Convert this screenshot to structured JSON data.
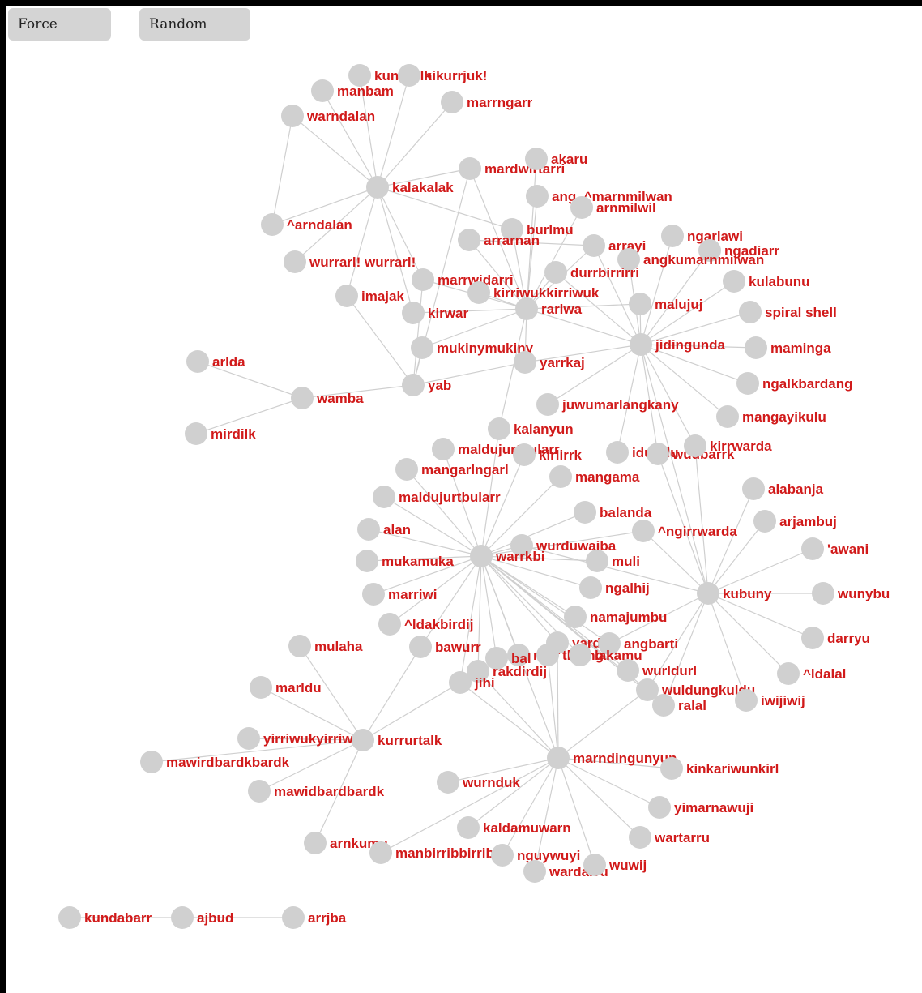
{
  "controls": {
    "force_label": "Force",
    "random_label": "Random"
  },
  "style": {
    "node_color": "#d0d0d0",
    "edge_color": "#cfcfcf",
    "label_color": "#d11a1a",
    "frame_color": "#000000"
  },
  "graph": {
    "nodes": [
      {
        "id": "kalakalak",
        "label": "kalakalak"
      },
      {
        "id": "kungarlk",
        "label": "kungarlk"
      },
      {
        "id": "hikurrjuk",
        "label": "hikurrjuk!"
      },
      {
        "id": "manbam",
        "label": "manbam"
      },
      {
        "id": "marrngarr",
        "label": "marrngarr"
      },
      {
        "id": "warndalan",
        "label": "warndalan"
      },
      {
        "id": "arndalan",
        "label": "^arndalan"
      },
      {
        "id": "wurrarl",
        "label": "wurrarl! wurrarl!"
      },
      {
        "id": "imajak",
        "label": "imajak"
      },
      {
        "id": "mardwirtarri",
        "label": "mardwirtarri"
      },
      {
        "id": "akaru",
        "label": "akaru"
      },
      {
        "id": "angmarnmilwan",
        "label": "ang..^marnmilwan"
      },
      {
        "id": "arnmilwil",
        "label": "arnmilwil"
      },
      {
        "id": "burlmu",
        "label": "burlmu"
      },
      {
        "id": "arrarnan",
        "label": "arrarnan"
      },
      {
        "id": "arrayi",
        "label": "arrayi"
      },
      {
        "id": "ngarlawi",
        "label": "ngarlawi"
      },
      {
        "id": "ngadiarr",
        "label": "ngadiarr"
      },
      {
        "id": "angkumarnmilwan",
        "label": "angkumarnmilwan"
      },
      {
        "id": "durrbirrirri",
        "label": "durrbirrirri"
      },
      {
        "id": "marrwidarri",
        "label": "marrwidarri"
      },
      {
        "id": "kirriwuk",
        "label": "kirriwukkirriwuk"
      },
      {
        "id": "kulabunu",
        "label": "kulabunu"
      },
      {
        "id": "kirwar",
        "label": "kirwar"
      },
      {
        "id": "rarlwa",
        "label": "rarlwa"
      },
      {
        "id": "malujuj",
        "label": "malujuj"
      },
      {
        "id": "spiralshell",
        "label": "spiral shell"
      },
      {
        "id": "jidingunda",
        "label": "jidingunda"
      },
      {
        "id": "maminga",
        "label": "maminga"
      },
      {
        "id": "mukinymukiny",
        "label": "mukinymukiny"
      },
      {
        "id": "yarrkaj",
        "label": "yarrkaj"
      },
      {
        "id": "arlda",
        "label": "arlda"
      },
      {
        "id": "ngalkbardang",
        "label": "ngalkbardang"
      },
      {
        "id": "yab",
        "label": "yab"
      },
      {
        "id": "wamba",
        "label": "wamba"
      },
      {
        "id": "juwumarlangkany",
        "label": "juwumarlangkany"
      },
      {
        "id": "mangayikulu",
        "label": "mangayikulu"
      },
      {
        "id": "mirdilk",
        "label": "mirdilk"
      },
      {
        "id": "kalanyun",
        "label": "kalanyun"
      },
      {
        "id": "maldujurtbularr1",
        "label": "maldujurtbularr"
      },
      {
        "id": "kirlirrk",
        "label": "kirlirrk"
      },
      {
        "id": "idurldu",
        "label": "idurldu"
      },
      {
        "id": "wudbarrk",
        "label": "wudbarrk"
      },
      {
        "id": "kirrwarda",
        "label": "kirrwarda"
      },
      {
        "id": "mangarlngarl",
        "label": "mangarlngarl"
      },
      {
        "id": "mangama",
        "label": "mangama"
      },
      {
        "id": "alabanja",
        "label": "alabanja"
      },
      {
        "id": "maldujurtbularr2",
        "label": "maldujurtbularr"
      },
      {
        "id": "balanda",
        "label": "balanda"
      },
      {
        "id": "arjambuj",
        "label": "arjambuj"
      },
      {
        "id": "alan",
        "label": "alan"
      },
      {
        "id": "ngirrwarda",
        "label": "^ngirrwarda"
      },
      {
        "id": "awani",
        "label": "'awani"
      },
      {
        "id": "wurduwajba",
        "label": "wurduwajba"
      },
      {
        "id": "mukamuka",
        "label": "mukamuka"
      },
      {
        "id": "warrkbi",
        "label": "warrkbi"
      },
      {
        "id": "muli",
        "label": "muli"
      },
      {
        "id": "ngalhij",
        "label": "ngalhij"
      },
      {
        "id": "kubuny",
        "label": "kubuny"
      },
      {
        "id": "wunybu",
        "label": "wunybu"
      },
      {
        "id": "marriwi",
        "label": "marriwi"
      },
      {
        "id": "namajumbu",
        "label": "namajumbu"
      },
      {
        "id": "ldakbirdij",
        "label": "^ldakbirdij"
      },
      {
        "id": "darryu",
        "label": "darryu"
      },
      {
        "id": "yarda",
        "label": "yarda"
      },
      {
        "id": "angbarti",
        "label": "angbarti"
      },
      {
        "id": "mulaha",
        "label": "mulaha"
      },
      {
        "id": "bawurr",
        "label": "bawurr"
      },
      {
        "id": "mirr",
        "label": "mirr"
      },
      {
        "id": "thaing",
        "label": "thaing"
      },
      {
        "id": "lakamu",
        "label": "lakamu"
      },
      {
        "id": "ldalal",
        "label": "^ldalal"
      },
      {
        "id": "bal",
        "label": "bal"
      },
      {
        "id": "rakdirdij",
        "label": "rakdirdij"
      },
      {
        "id": "wurldurl",
        "label": "wurldurl"
      },
      {
        "id": "marldu",
        "label": "marldu"
      },
      {
        "id": "jihi",
        "label": "jihi"
      },
      {
        "id": "wuldungkuldu",
        "label": "wuldungkuldu"
      },
      {
        "id": "iwijiwij",
        "label": "iwijiwij"
      },
      {
        "id": "ralal",
        "label": "ralal"
      },
      {
        "id": "yirriwuk",
        "label": "yirriwukyirriwuk"
      },
      {
        "id": "kurrurtalk",
        "label": "kurrurtalk"
      },
      {
        "id": "mawirdbardk",
        "label": "mawirdbardkbardk"
      },
      {
        "id": "marndingunyun",
        "label": "marndingunyun"
      },
      {
        "id": "kinkariwunkirl",
        "label": "kinkariwunkirl"
      },
      {
        "id": "mawidbardbardk",
        "label": "mawidbardbardk"
      },
      {
        "id": "wurnduk",
        "label": "wurnduk"
      },
      {
        "id": "yimarnawuji",
        "label": "yimarnawuji"
      },
      {
        "id": "kaldamuwarn",
        "label": "kaldamuwarn"
      },
      {
        "id": "wartarru",
        "label": "wartarru"
      },
      {
        "id": "arnkumu",
        "label": "arnkumu"
      },
      {
        "id": "manbirribbirrib",
        "label": "manbirribbirrib"
      },
      {
        "id": "nguywuyi",
        "label": "nguywuyi"
      },
      {
        "id": "wardarru",
        "label": "wardarru"
      },
      {
        "id": "wuwij",
        "label": "wuwij"
      },
      {
        "id": "kundabarr",
        "label": "kundabarr"
      },
      {
        "id": "ajbud",
        "label": "ajbud"
      },
      {
        "id": "arrjba",
        "label": "arrjba"
      }
    ],
    "edges": [
      [
        "kalakalak",
        "kungarlk"
      ],
      [
        "kalakalak",
        "hikurrjuk"
      ],
      [
        "kalakalak",
        "manbam"
      ],
      [
        "kalakalak",
        "marrngarr"
      ],
      [
        "kalakalak",
        "warndalan"
      ],
      [
        "kalakalak",
        "arndalan"
      ],
      [
        "kalakalak",
        "wurrarl"
      ],
      [
        "kalakalak",
        "imajak"
      ],
      [
        "kalakalak",
        "mardwirtarri"
      ],
      [
        "kalakalak",
        "burlmu"
      ],
      [
        "kalakalak",
        "marrwidarri"
      ],
      [
        "kalakalak",
        "kirwar"
      ],
      [
        "warndalan",
        "arndalan"
      ],
      [
        "imajak",
        "yab"
      ],
      [
        "rarlwa",
        "mardwirtarri"
      ],
      [
        "rarlwa",
        "akaru"
      ],
      [
        "rarlwa",
        "angmarnmilwan"
      ],
      [
        "rarlwa",
        "arnmilwil"
      ],
      [
        "rarlwa",
        "burlmu"
      ],
      [
        "rarlwa",
        "arrarnan"
      ],
      [
        "rarlwa",
        "arrayi"
      ],
      [
        "rarlwa",
        "durrbirrirri"
      ],
      [
        "rarlwa",
        "marrwidarri"
      ],
      [
        "rarlwa",
        "kirriwuk"
      ],
      [
        "rarlwa",
        "kirwar"
      ],
      [
        "rarlwa",
        "malujuj"
      ],
      [
        "rarlwa",
        "mukinymukiny"
      ],
      [
        "rarlwa",
        "yarrkaj"
      ],
      [
        "rarlwa",
        "jidingunda"
      ],
      [
        "rarlwa",
        "kalanyun"
      ],
      [
        "mardwirtarri",
        "yab"
      ],
      [
        "marrwidarri",
        "yab"
      ],
      [
        "arrarnan",
        "arrayi"
      ],
      [
        "jidingunda",
        "ngarlawi"
      ],
      [
        "jidingunda",
        "ngadiarr"
      ],
      [
        "jidingunda",
        "angkumarnmilwan"
      ],
      [
        "jidingunda",
        "kulabunu"
      ],
      [
        "jidingunda",
        "malujuj"
      ],
      [
        "jidingunda",
        "spiralshell"
      ],
      [
        "jidingunda",
        "maminga"
      ],
      [
        "jidingunda",
        "ngalkbardang"
      ],
      [
        "jidingunda",
        "mangayikulu"
      ],
      [
        "jidingunda",
        "juwumarlangkany"
      ],
      [
        "jidingunda",
        "yarrkaj"
      ],
      [
        "jidingunda",
        "idurldu"
      ],
      [
        "jidingunda",
        "wudbarrk"
      ],
      [
        "jidingunda",
        "kirrwarda"
      ],
      [
        "jidingunda",
        "durrbirrirri"
      ],
      [
        "jidingunda",
        "arrayi"
      ],
      [
        "jidingunda",
        "kubuny"
      ],
      [
        "yab",
        "wamba"
      ],
      [
        "yab",
        "mukinymukiny"
      ],
      [
        "yab",
        "yarrkaj"
      ],
      [
        "wamba",
        "arlda"
      ],
      [
        "wamba",
        "mirdilk"
      ],
      [
        "warrkbi",
        "kalanyun"
      ],
      [
        "warrkbi",
        "maldujurtbularr1"
      ],
      [
        "warrkbi",
        "kirlirrk"
      ],
      [
        "warrkbi",
        "mangarlngarl"
      ],
      [
        "warrkbi",
        "mangama"
      ],
      [
        "warrkbi",
        "maldujurtbularr2"
      ],
      [
        "warrkbi",
        "balanda"
      ],
      [
        "warrkbi",
        "alan"
      ],
      [
        "warrkbi",
        "wurduwajba"
      ],
      [
        "warrkbi",
        "mukamuka"
      ],
      [
        "warrkbi",
        "muli"
      ],
      [
        "warrkbi",
        "ngalhij"
      ],
      [
        "warrkbi",
        "marriwi"
      ],
      [
        "warrkbi",
        "namajumbu"
      ],
      [
        "warrkbi",
        "ldakbirdij"
      ],
      [
        "warrkbi",
        "bawurr"
      ],
      [
        "warrkbi",
        "yarda"
      ],
      [
        "warrkbi",
        "angbarti"
      ],
      [
        "warrkbi",
        "mirr"
      ],
      [
        "warrkbi",
        "lakamu"
      ],
      [
        "warrkbi",
        "bal"
      ],
      [
        "warrkbi",
        "rakdirdij"
      ],
      [
        "warrkbi",
        "jihi"
      ],
      [
        "warrkbi",
        "wurldurl"
      ],
      [
        "warrkbi",
        "wuldungkuldu"
      ],
      [
        "warrkbi",
        "ralal"
      ],
      [
        "warrkbi",
        "marndingunyun"
      ],
      [
        "warrkbi",
        "ngirrwarda"
      ],
      [
        "kubuny",
        "kirrwarda"
      ],
      [
        "kubuny",
        "wudbarrk"
      ],
      [
        "kubuny",
        "alabanja"
      ],
      [
        "kubuny",
        "arjambuj"
      ],
      [
        "kubuny",
        "ngirrwarda"
      ],
      [
        "kubuny",
        "awani"
      ],
      [
        "kubuny",
        "wunybu"
      ],
      [
        "kubuny",
        "darryu"
      ],
      [
        "kubuny",
        "ldalal"
      ],
      [
        "kubuny",
        "iwijiwij"
      ],
      [
        "kubuny",
        "wuldungkuldu"
      ],
      [
        "kubuny",
        "ralal"
      ],
      [
        "kubuny",
        "wurduwajba"
      ],
      [
        "kubuny",
        "angbarti"
      ],
      [
        "kurrurtalk",
        "mulaha"
      ],
      [
        "kurrurtalk",
        "bawurr"
      ],
      [
        "kurrurtalk",
        "marldu"
      ],
      [
        "kurrurtalk",
        "yirriwuk"
      ],
      [
        "kurrurtalk",
        "mawirdbardk"
      ],
      [
        "kurrurtalk",
        "mawidbardbardk"
      ],
      [
        "kurrurtalk",
        "arnkumu"
      ],
      [
        "kurrurtalk",
        "jihi"
      ],
      [
        "marndingunyun",
        "jihi"
      ],
      [
        "marndingunyun",
        "kinkariwunkirl"
      ],
      [
        "marndingunyun",
        "wurnduk"
      ],
      [
        "marndingunyun",
        "yimarnawuji"
      ],
      [
        "marndingunyun",
        "kaldamuwarn"
      ],
      [
        "marndingunyun",
        "wartarru"
      ],
      [
        "marndingunyun",
        "manbirribbirrib"
      ],
      [
        "marndingunyun",
        "nguywuyi"
      ],
      [
        "marndingunyun",
        "wardarru"
      ],
      [
        "marndingunyun",
        "wuwij"
      ],
      [
        "marndingunyun",
        "wuldungkuldu"
      ],
      [
        "marndingunyun",
        "yarda"
      ],
      [
        "marndingunyun",
        "rakdirdij"
      ],
      [
        "marndingunyun",
        "thaing"
      ],
      [
        "kundabarr",
        "ajbud"
      ],
      [
        "ajbud",
        "arrjba"
      ]
    ]
  }
}
